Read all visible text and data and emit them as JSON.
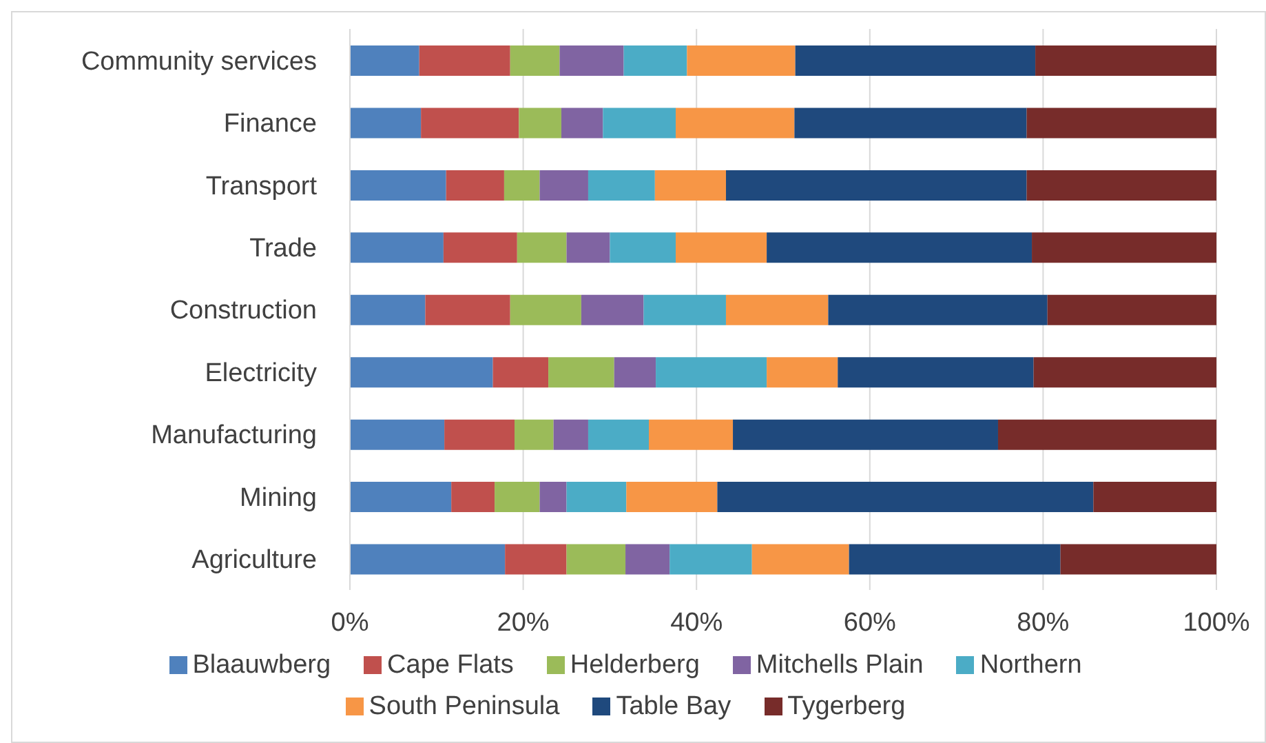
{
  "chart_data": {
    "type": "bar",
    "orientation": "horizontal",
    "stacked": true,
    "categories": [
      "Community services",
      "Finance",
      "Transport",
      "Trade",
      "Construction",
      "Electricity",
      "Manufacturing",
      "Mining",
      "Agriculture"
    ],
    "series": [
      {
        "name": "Blaauwberg",
        "color": "#4f81bd",
        "values": [
          8.0,
          8.2,
          11.1,
          10.8,
          8.7,
          16.5,
          10.9,
          11.7,
          17.9
        ]
      },
      {
        "name": "Cape Flats",
        "color": "#c0504d",
        "values": [
          10.5,
          11.3,
          6.7,
          8.5,
          9.8,
          6.4,
          8.1,
          5.0,
          7.1
        ]
      },
      {
        "name": "Helderberg",
        "color": "#9bbb59",
        "values": [
          5.7,
          4.9,
          4.1,
          5.7,
          8.2,
          7.6,
          4.5,
          5.2,
          6.8
        ]
      },
      {
        "name": "Mitchells Plain",
        "color": "#8064a2",
        "values": [
          7.4,
          4.8,
          5.6,
          5.0,
          7.2,
          4.8,
          4.0,
          3.1,
          5.1
        ]
      },
      {
        "name": "Northern",
        "color": "#4bacc6",
        "values": [
          7.3,
          8.4,
          7.7,
          7.6,
          9.5,
          12.8,
          7.0,
          6.9,
          9.5
        ]
      },
      {
        "name": "South Peninsula",
        "color": "#f79646",
        "values": [
          12.5,
          13.7,
          8.2,
          10.5,
          11.8,
          8.2,
          9.7,
          10.5,
          11.2
        ]
      },
      {
        "name": "Table Bay",
        "color": "#1f497d",
        "values": [
          27.7,
          26.8,
          34.7,
          30.6,
          25.3,
          22.6,
          30.6,
          43.4,
          24.4
        ]
      },
      {
        "name": "Tygerberg",
        "color": "#772c2a",
        "values": [
          20.9,
          21.9,
          21.9,
          21.3,
          19.5,
          21.1,
          25.2,
          14.2,
          18.0
        ]
      }
    ],
    "xlim": [
      0,
      100
    ],
    "xticks": [
      {
        "value": 0,
        "label": "0%"
      },
      {
        "value": 20,
        "label": "20%"
      },
      {
        "value": 40,
        "label": "40%"
      },
      {
        "value": 60,
        "label": "60%"
      },
      {
        "value": 80,
        "label": "80%"
      },
      {
        "value": 100,
        "label": "100%"
      }
    ],
    "grid": "x",
    "legend": "bottom"
  }
}
